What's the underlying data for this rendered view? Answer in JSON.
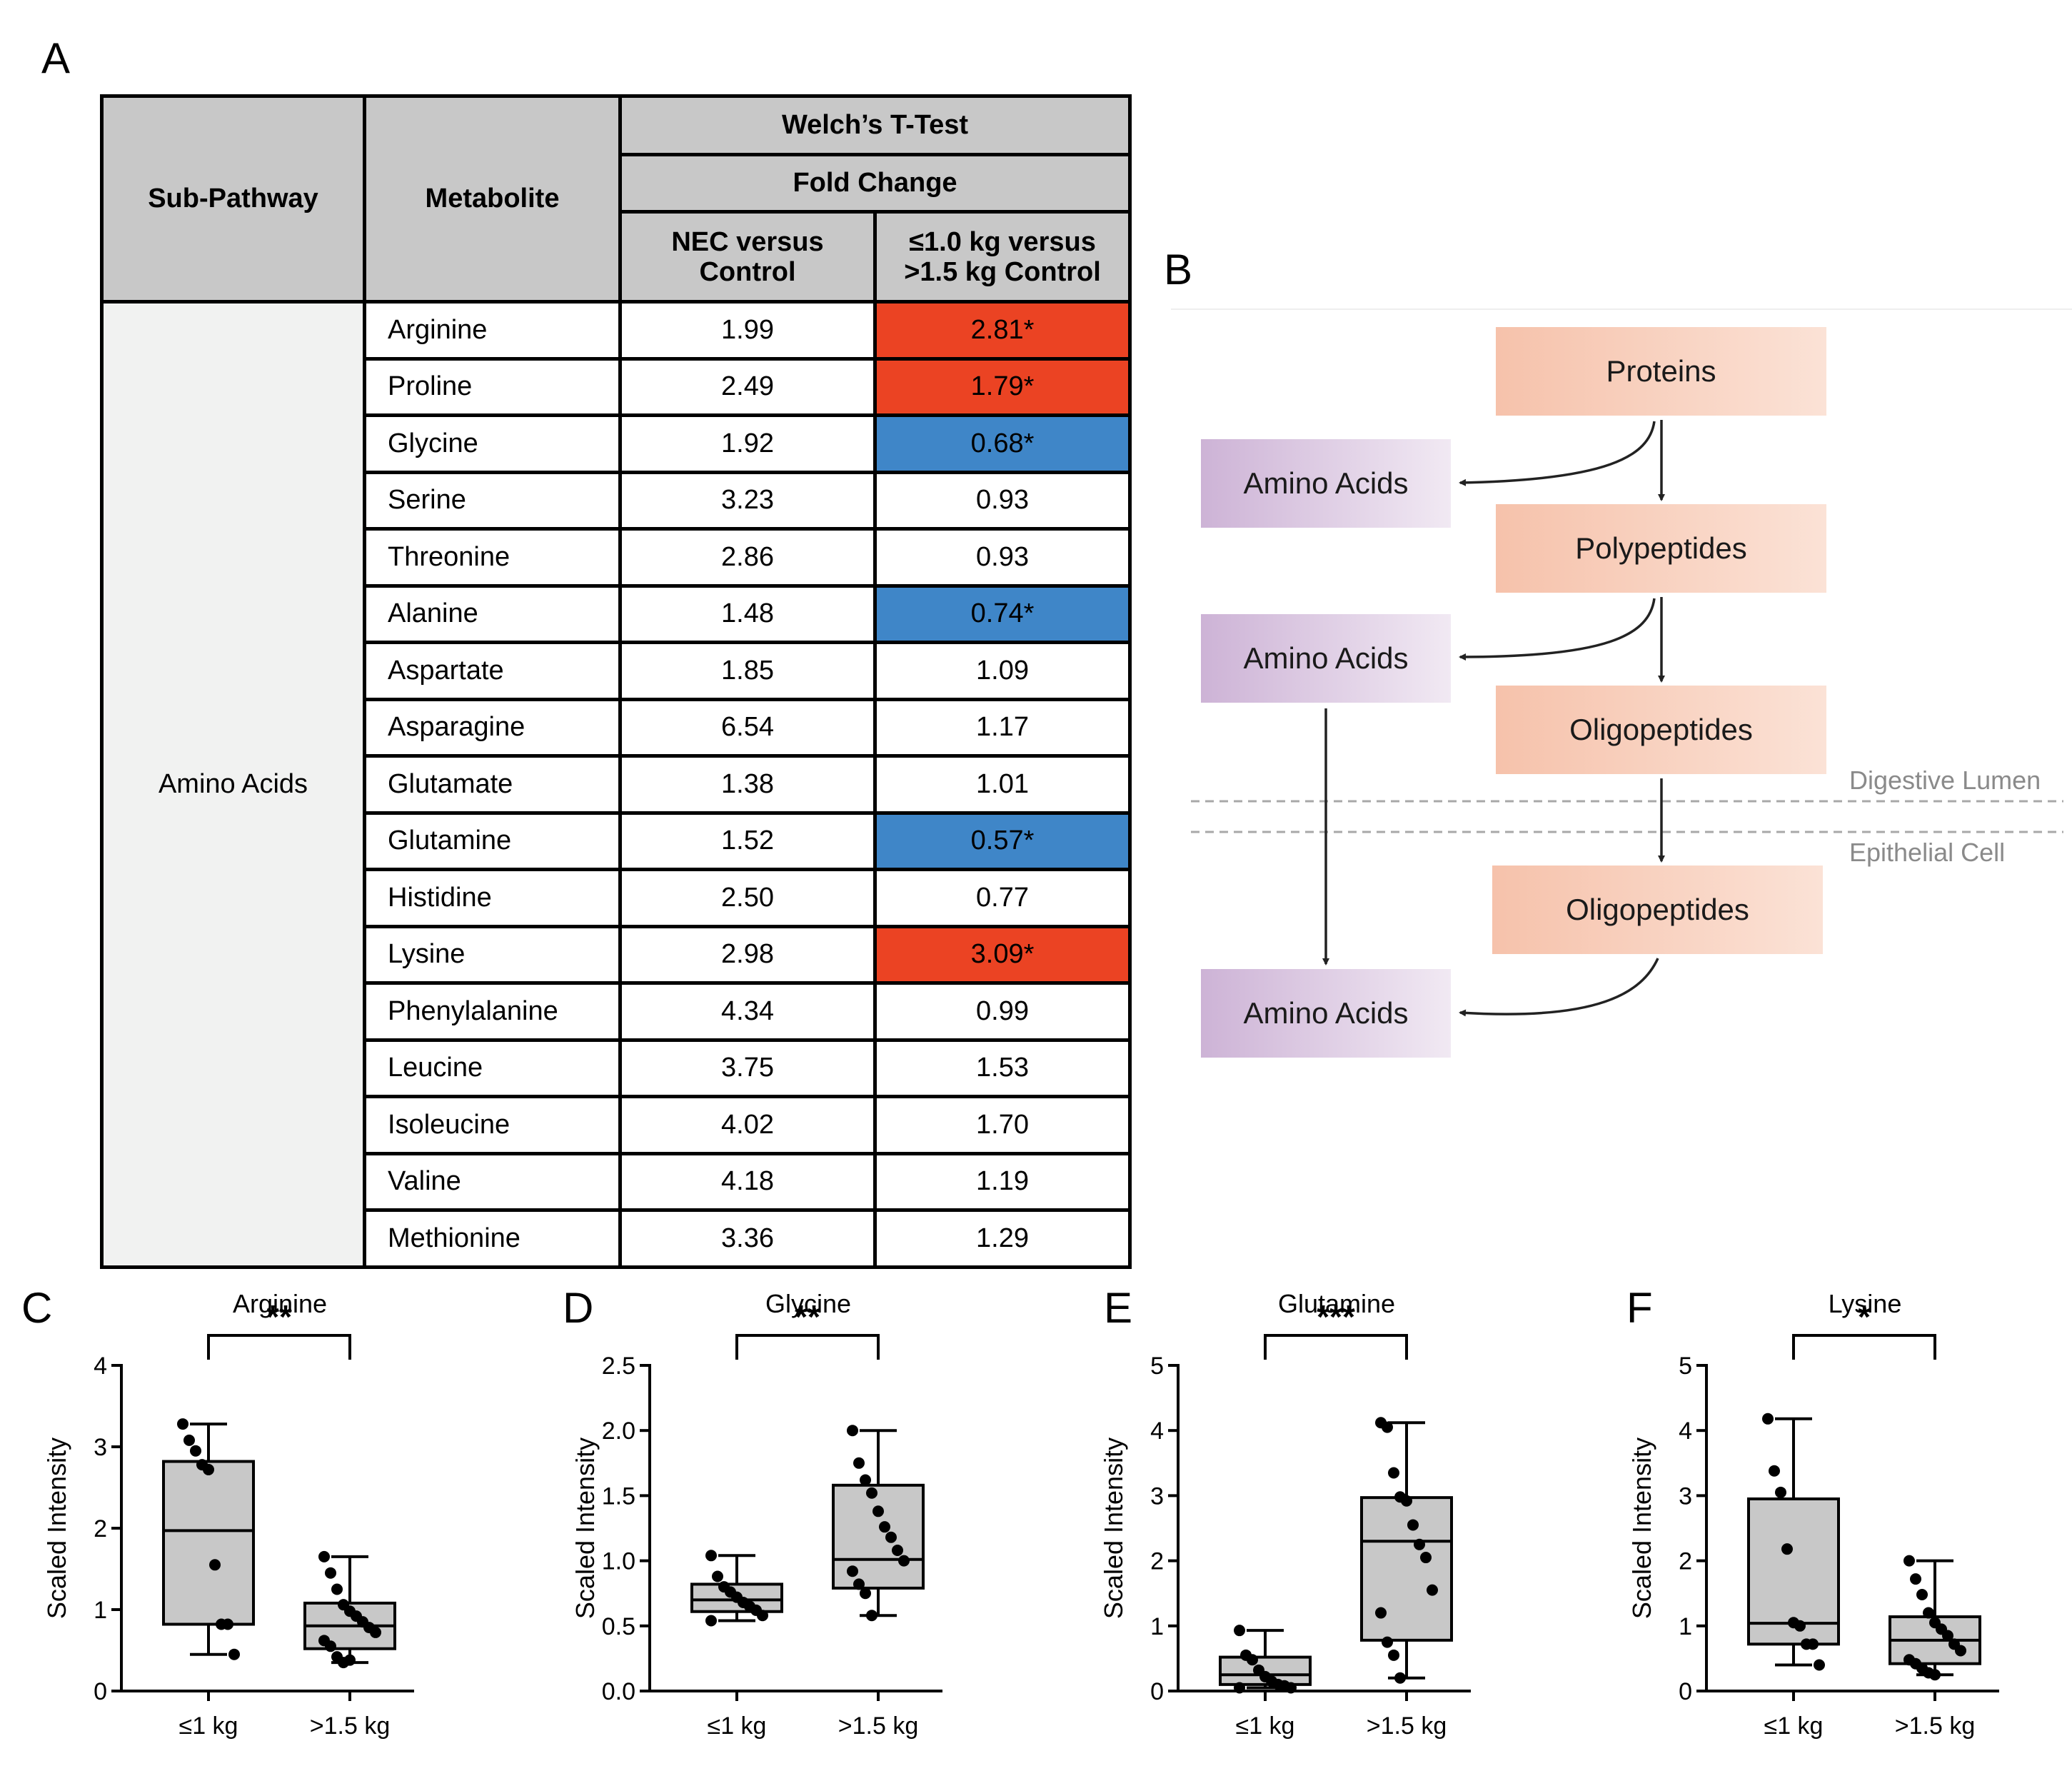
{
  "panels": {
    "a": "A",
    "b": "B",
    "c": "C",
    "d": "D",
    "e": "E",
    "f": "F"
  },
  "table": {
    "headers": {
      "sub_pathway": "Sub-Pathway",
      "metabolite": "Metabolite",
      "test": "Welch’s T-Test",
      "fold_change": "Fold Change",
      "col1_line1": "NEC versus",
      "col1_line2": "Control",
      "col2_line1": "≤1.0 kg versus",
      "col2_line2": ">1.5 kg Control"
    },
    "sub_pathway_value": "Amino Acids",
    "rows": [
      {
        "name": "Arginine",
        "nec": "1.99",
        "weight": "2.81*",
        "sig": "up"
      },
      {
        "name": "Proline",
        "nec": "2.49",
        "weight": "1.79*",
        "sig": "up"
      },
      {
        "name": "Glycine",
        "nec": "1.92",
        "weight": "0.68*",
        "sig": "down"
      },
      {
        "name": "Serine",
        "nec": "3.23",
        "weight": "0.93",
        "sig": "none"
      },
      {
        "name": "Threonine",
        "nec": "2.86",
        "weight": "0.93",
        "sig": "none"
      },
      {
        "name": "Alanine",
        "nec": "1.48",
        "weight": "0.74*",
        "sig": "down"
      },
      {
        "name": "Aspartate",
        "nec": "1.85",
        "weight": "1.09",
        "sig": "none"
      },
      {
        "name": "Asparagine",
        "nec": "6.54",
        "weight": "1.17",
        "sig": "none"
      },
      {
        "name": "Glutamate",
        "nec": "1.38",
        "weight": "1.01",
        "sig": "none"
      },
      {
        "name": "Glutamine",
        "nec": "1.52",
        "weight": "0.57*",
        "sig": "down"
      },
      {
        "name": "Histidine",
        "nec": "2.50",
        "weight": "0.77",
        "sig": "none"
      },
      {
        "name": "Lysine",
        "nec": "2.98",
        "weight": "3.09*",
        "sig": "up"
      },
      {
        "name": "Phenylalanine",
        "nec": "4.34",
        "weight": "0.99",
        "sig": "none"
      },
      {
        "name": "Leucine",
        "nec": "3.75",
        "weight": "1.53",
        "sig": "none"
      },
      {
        "name": "Isoleucine",
        "nec": "4.02",
        "weight": "1.70",
        "sig": "none"
      },
      {
        "name": "Valine",
        "nec": "4.18",
        "weight": "1.19",
        "sig": "none"
      },
      {
        "name": "Methionine",
        "nec": "3.36",
        "weight": "1.29",
        "sig": "none"
      }
    ],
    "colors": {
      "up": "#eb4323",
      "down": "#3f86c8"
    }
  },
  "diagram": {
    "proteins": "Proteins",
    "polypeptides": "Polypeptides",
    "oligopeptides_lumen": "Oligopeptides",
    "oligopeptides_cell": "Oligopeptides",
    "amino_acids_1": "Amino Acids",
    "amino_acids_2": "Amino Acids",
    "amino_acids_3": "Amino Acids",
    "lumen_label": "Digestive Lumen",
    "cell_label": "Epithelial Cell"
  },
  "chart_data": [
    {
      "type": "box",
      "panel": "C",
      "title": "Arginine",
      "ylabel": "Scaled Intensity",
      "categories": [
        "≤1 kg",
        ">1.5 kg"
      ],
      "ylim": [
        0,
        4
      ],
      "yticks": [
        "0",
        "1",
        "2",
        "3",
        "4"
      ],
      "significance": "**",
      "boxes": [
        {
          "min": 0.45,
          "q1": 0.82,
          "median": 1.97,
          "q3": 2.82,
          "max": 3.28,
          "points": [
            3.28,
            3.08,
            2.95,
            2.78,
            2.72,
            1.55,
            0.82,
            0.82,
            0.45
          ]
        },
        {
          "min": 0.35,
          "q1": 0.52,
          "median": 0.8,
          "q3": 1.08,
          "max": 1.65,
          "points": [
            1.65,
            1.45,
            1.25,
            1.06,
            0.98,
            0.92,
            0.85,
            0.78,
            0.72,
            0.62,
            0.55,
            0.42,
            0.35,
            0.38
          ]
        }
      ]
    },
    {
      "type": "box",
      "panel": "D",
      "title": "Glycine",
      "ylabel": "Scaled Intensity",
      "categories": [
        "≤1 kg",
        ">1.5 kg"
      ],
      "ylim": [
        0,
        2.5
      ],
      "yticks": [
        "0.0",
        "0.5",
        "1.0",
        "1.5",
        "2.0",
        "2.5"
      ],
      "significance": "**",
      "boxes": [
        {
          "min": 0.54,
          "q1": 0.61,
          "median": 0.7,
          "q3": 0.82,
          "max": 1.04,
          "points": [
            1.04,
            0.88,
            0.8,
            0.76,
            0.72,
            0.68,
            0.65,
            0.62,
            0.58,
            0.54
          ]
        },
        {
          "min": 0.58,
          "q1": 0.79,
          "median": 1.01,
          "q3": 1.58,
          "max": 2.0,
          "points": [
            2.0,
            1.75,
            1.62,
            1.52,
            1.38,
            1.26,
            1.18,
            1.08,
            1.0,
            0.92,
            0.82,
            0.75,
            0.58
          ]
        }
      ]
    },
    {
      "type": "box",
      "panel": "E",
      "title": "Glutamine",
      "ylabel": "Scaled Intensity",
      "categories": [
        "≤1 kg",
        ">1.5 kg"
      ],
      "ylim": [
        0,
        5
      ],
      "yticks": [
        "0",
        "1",
        "2",
        "3",
        "4",
        "5"
      ],
      "significance": "***",
      "boxes": [
        {
          "min": 0.05,
          "q1": 0.1,
          "median": 0.25,
          "q3": 0.52,
          "max": 0.93,
          "points": [
            0.93,
            0.55,
            0.48,
            0.32,
            0.22,
            0.15,
            0.1,
            0.08,
            0.05,
            0.05
          ]
        },
        {
          "min": 0.2,
          "q1": 0.78,
          "median": 2.3,
          "q3": 2.97,
          "max": 4.12,
          "points": [
            4.12,
            4.05,
            3.35,
            2.98,
            2.92,
            2.55,
            2.25,
            2.05,
            1.55,
            1.2,
            0.75,
            0.55,
            0.2
          ]
        }
      ]
    },
    {
      "type": "box",
      "panel": "F",
      "title": "Lysine",
      "ylabel": "Scaled Intensity",
      "categories": [
        "≤1 kg",
        ">1.5 kg"
      ],
      "ylim": [
        0,
        5
      ],
      "yticks": [
        "0",
        "1",
        "2",
        "3",
        "4",
        "5"
      ],
      "significance": "*",
      "boxes": [
        {
          "min": 0.4,
          "q1": 0.72,
          "median": 1.04,
          "q3": 2.95,
          "max": 4.18,
          "points": [
            4.18,
            3.38,
            3.05,
            2.18,
            1.05,
            1.0,
            0.72,
            0.72,
            0.4
          ]
        },
        {
          "min": 0.25,
          "q1": 0.42,
          "median": 0.78,
          "q3": 1.14,
          "max": 2.0,
          "points": [
            2.0,
            1.72,
            1.48,
            1.2,
            1.05,
            0.95,
            0.85,
            0.72,
            0.62,
            0.48,
            0.42,
            0.35,
            0.28,
            0.25
          ]
        }
      ]
    }
  ]
}
